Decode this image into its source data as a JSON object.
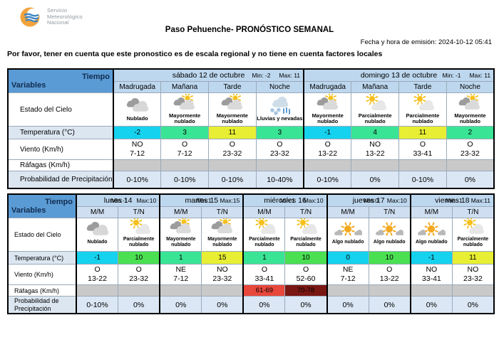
{
  "header": {
    "logo": {
      "line1": "Servicio",
      "line2": "Meteorológico",
      "line3": "Nacional"
    },
    "title": "Paso Pehuenche- PRONÓSTICO SEMANAL",
    "emission": "Fecha y hora de emisión: 2024-10-12 05:41",
    "note": "Por favor, tener en cuenta que este pronostico es de escala regional y no tiene en cuenta factores locales"
  },
  "labels": {
    "tiempo": "Tiempo",
    "variables": "Variables",
    "estado": "Estado del Cielo",
    "temperatura": "Temperatura (°C)",
    "viento": "Viento (Km/h)",
    "rafagas": "Ráfagas (Km/h)",
    "precipitacion": "Probabilidad de Precipitación"
  },
  "colors": {
    "header_blue": "#5b9bd5",
    "band_blue": "#bdd7ee",
    "label_blue": "#dce6f1",
    "precip_blue": "#dbe7f4",
    "temp_cyan": "#15d2ee",
    "temp_springgreen": "#39e494",
    "temp_green": "#4ae052",
    "temp_yellow": "#e7ee33",
    "gust_gray": "#c9c9c9",
    "gust_red": "#e8473c",
    "gust_darkred": "#7a1713"
  },
  "table1": {
    "label_width": 148,
    "days": [
      {
        "name": "sábado 12 de octubre",
        "min": "Min: -2",
        "max": "Max: 11",
        "periods": [
          "Madrugada",
          "Mañana",
          "Tarde",
          "Noche"
        ]
      },
      {
        "name": "domingo 13 de octubre",
        "min": "Min: -1",
        "max": "Max: 11",
        "periods": [
          "Madrugada",
          "Mañana",
          "Tarde",
          "Noche"
        ]
      }
    ],
    "sky": [
      {
        "icon": "nublado",
        "label": "Nublado"
      },
      {
        "icon": "mayormente",
        "label": "Mayormente nublado"
      },
      {
        "icon": "mayormente",
        "label": "Mayormente nublado"
      },
      {
        "icon": "lluvias",
        "label": "Lluvias y nevadas"
      },
      {
        "icon": "mayormente",
        "label": "Mayormente nublado"
      },
      {
        "icon": "parcialmente",
        "label": "Parcialmente nublado"
      },
      {
        "icon": "parcialmente",
        "label": "Parcialmente nublado"
      },
      {
        "icon": "mayormente",
        "label": "Mayormente nublado"
      }
    ],
    "temp": [
      {
        "v": "-2",
        "bg": "#15d2ee"
      },
      {
        "v": "3",
        "bg": "#39e494"
      },
      {
        "v": "11",
        "bg": "#e7ee33"
      },
      {
        "v": "3",
        "bg": "#39e494"
      },
      {
        "v": "-1",
        "bg": "#15d2ee"
      },
      {
        "v": "4",
        "bg": "#39e494"
      },
      {
        "v": "11",
        "bg": "#e7ee33"
      },
      {
        "v": "2",
        "bg": "#39e494"
      }
    ],
    "wind": [
      {
        "dir": "NO",
        "speed": "7-12"
      },
      {
        "dir": "O",
        "speed": "7-12"
      },
      {
        "dir": "O",
        "speed": "23-32"
      },
      {
        "dir": "O",
        "speed": "23-32"
      },
      {
        "dir": "O",
        "speed": "13-22"
      },
      {
        "dir": "NO",
        "speed": "13-22"
      },
      {
        "dir": "O",
        "speed": "33-41"
      },
      {
        "dir": "O",
        "speed": "23-32"
      }
    ],
    "gusts": [
      {
        "v": "",
        "bg": "#c9c9c9"
      },
      {
        "v": "",
        "bg": "#c9c9c9"
      },
      {
        "v": "",
        "bg": "#c9c9c9"
      },
      {
        "v": "",
        "bg": "#c9c9c9"
      },
      {
        "v": "",
        "bg": "#c9c9c9"
      },
      {
        "v": "",
        "bg": "#c9c9c9"
      },
      {
        "v": "",
        "bg": "#c9c9c9"
      },
      {
        "v": "",
        "bg": "#c9c9c9"
      }
    ],
    "precip": [
      "0-10%",
      "0-10%",
      "0-10%",
      "10-40%",
      "0-10%",
      "0%",
      "0-10%",
      "0%"
    ]
  },
  "table2": {
    "label_width": 96,
    "days": [
      {
        "name": "lunes 14",
        "min": "Min:-1",
        "max": "Max:10",
        "periods": [
          "M/M",
          "T/N"
        ]
      },
      {
        "name": "martes 15",
        "min": "Min:1",
        "max": "Max:15",
        "periods": [
          "M/M",
          "T/N"
        ]
      },
      {
        "name": "miércoles 16",
        "min": "Min:1",
        "max": "Max:10",
        "periods": [
          "M/M",
          "T/N"
        ]
      },
      {
        "name": "jueves 17",
        "min": "Min:0",
        "max": "Max:10",
        "periods": [
          "M/M",
          "T/N"
        ]
      },
      {
        "name": "viernes 18",
        "min": "Min:-1",
        "max": "Max:11",
        "periods": [
          "M/M",
          "T/N"
        ]
      }
    ],
    "sky": [
      {
        "icon": "nublado",
        "label": "Nublado"
      },
      {
        "icon": "parcialmente",
        "label": "Parcialmente nublado"
      },
      {
        "icon": "mayormente",
        "label": "Mayormente nublado"
      },
      {
        "icon": "mayormente",
        "label": "Mayormente nublado"
      },
      {
        "icon": "parcialmente",
        "label": "Parcialmente nublado"
      },
      {
        "icon": "parcialmente",
        "label": "Parcialmente nublado"
      },
      {
        "icon": "algo",
        "label": "Algo nublado"
      },
      {
        "icon": "algo",
        "label": "Algo nublado"
      },
      {
        "icon": "algo",
        "label": "Algo nublado"
      },
      {
        "icon": "parcialmente",
        "label": "Parcialmente nublado"
      }
    ],
    "temp": [
      {
        "v": "-1",
        "bg": "#15d2ee"
      },
      {
        "v": "10",
        "bg": "#4ae052"
      },
      {
        "v": "1",
        "bg": "#39e494"
      },
      {
        "v": "15",
        "bg": "#e7ee33"
      },
      {
        "v": "1",
        "bg": "#39e494"
      },
      {
        "v": "10",
        "bg": "#4ae052"
      },
      {
        "v": "0",
        "bg": "#15d2ee"
      },
      {
        "v": "10",
        "bg": "#4ae052"
      },
      {
        "v": "-1",
        "bg": "#15d2ee"
      },
      {
        "v": "11",
        "bg": "#e7ee33"
      }
    ],
    "wind": [
      {
        "dir": "O",
        "speed": "13-22"
      },
      {
        "dir": "O",
        "speed": "23-32"
      },
      {
        "dir": "NE",
        "speed": "7-12"
      },
      {
        "dir": "NO",
        "speed": "23-32"
      },
      {
        "dir": "O",
        "speed": "33-41"
      },
      {
        "dir": "O",
        "speed": "52-60"
      },
      {
        "dir": "NE",
        "speed": "7-12"
      },
      {
        "dir": "O",
        "speed": "13-22"
      },
      {
        "dir": "NO",
        "speed": "33-41"
      },
      {
        "dir": "NO",
        "speed": "23-32"
      }
    ],
    "gusts": [
      {
        "v": "",
        "bg": "#c9c9c9"
      },
      {
        "v": "",
        "bg": "#c9c9c9"
      },
      {
        "v": "",
        "bg": "#c9c9c9"
      },
      {
        "v": "",
        "bg": "#c9c9c9"
      },
      {
        "v": "61-69",
        "bg": "#e8473c"
      },
      {
        "v": "70-78",
        "bg": "#7a1713"
      },
      {
        "v": "",
        "bg": "#c9c9c9"
      },
      {
        "v": "",
        "bg": "#c9c9c9"
      },
      {
        "v": "",
        "bg": "#c9c9c9"
      },
      {
        "v": "",
        "bg": "#c9c9c9"
      }
    ],
    "precip": [
      "0-10%",
      "0%",
      "0%",
      "0%",
      "0%",
      "0%",
      "0%",
      "0%",
      "0%",
      "0%"
    ]
  }
}
